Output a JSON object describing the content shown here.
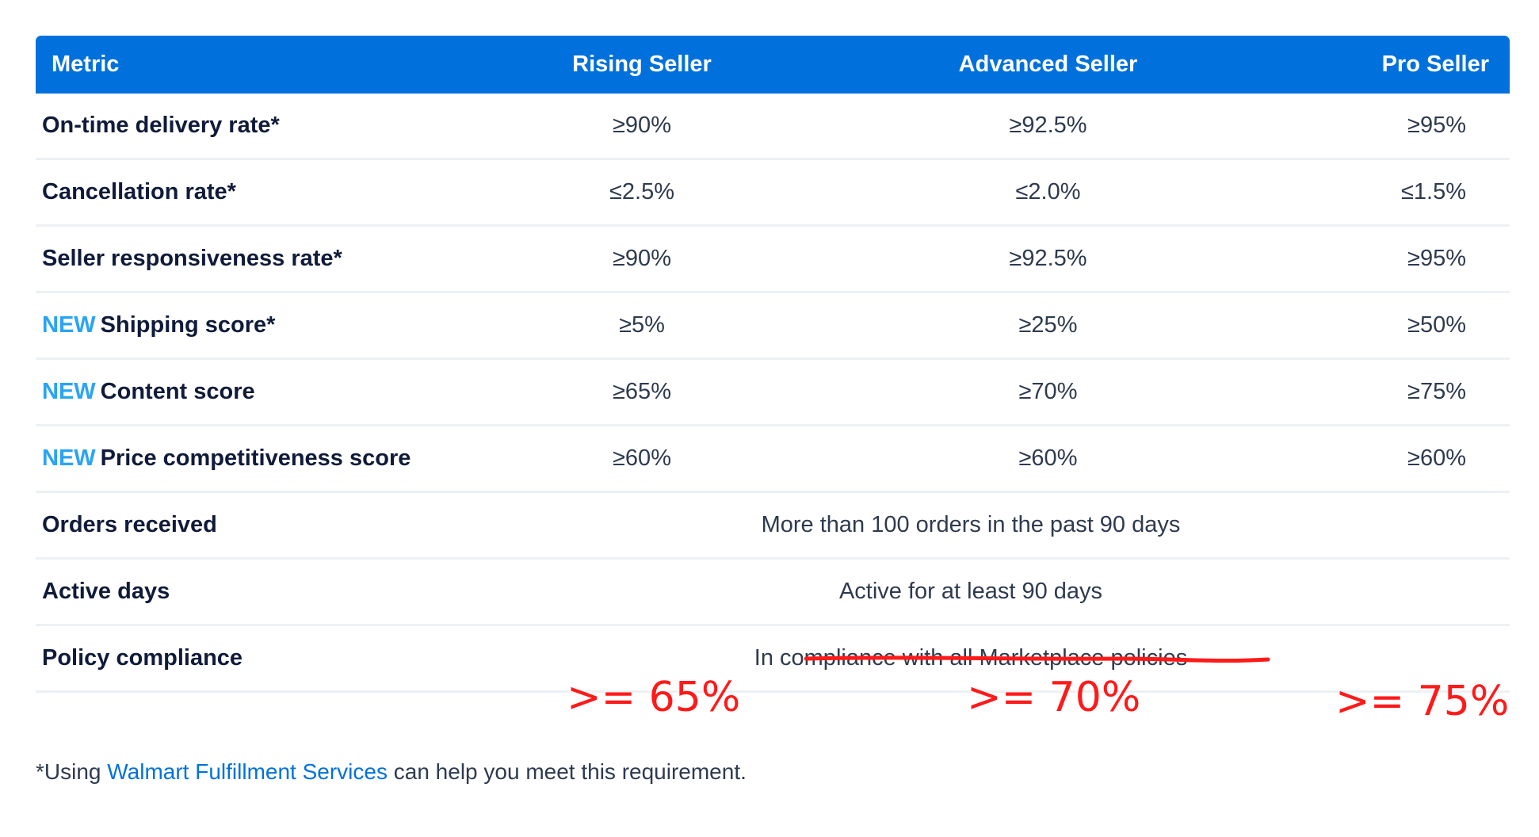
{
  "header": {
    "metric": "Metric",
    "rising": "Rising Seller",
    "advanced": "Advanced Seller",
    "pro": "Pro Seller"
  },
  "rows": [
    {
      "metric": "On-time delivery rate*",
      "rising": "≥90%",
      "advanced": "≥92.5%",
      "pro": "≥95%"
    },
    {
      "metric": "Cancellation rate*",
      "rising": "≤2.5%",
      "advanced": "≤2.0%",
      "pro": "≤1.5%"
    },
    {
      "metric": "Seller responsiveness rate*",
      "rising": "≥90%",
      "advanced": "≥92.5%",
      "pro": "≥95%"
    },
    {
      "new": "NEW",
      "metric": "Shipping score*",
      "rising": "≥5%",
      "advanced": "≥25%",
      "pro": "≥50%"
    },
    {
      "new": "NEW",
      "metric": "Content score",
      "rising": "≥65%",
      "advanced": "≥70%",
      "pro": "≥75%"
    },
    {
      "new": "NEW",
      "metric": "Price competitiveness score",
      "rising": "≥60%",
      "advanced": "≥60%",
      "pro": "≥60%"
    }
  ],
  "span_rows": [
    {
      "metric": "Orders received",
      "value": "More than 100 orders in the past 90 days"
    },
    {
      "metric": "Active days",
      "value": "Active for at least 90 days"
    },
    {
      "metric": "Policy compliance",
      "value": "In compliance with all Marketplace policies"
    }
  ],
  "annotations": {
    "rising": ">= 65%",
    "advanced": ">= 70%",
    "pro": ">= 75%",
    "color": "#ff1a1a"
  },
  "footnote": {
    "prefix": "*Using ",
    "link": "Walmart Fulfillment Services",
    "suffix": " can help you meet this requirement."
  },
  "colors": {
    "header_bg": "#0071dc",
    "new_tag": "#2aa4f4",
    "link": "#0071dc"
  }
}
